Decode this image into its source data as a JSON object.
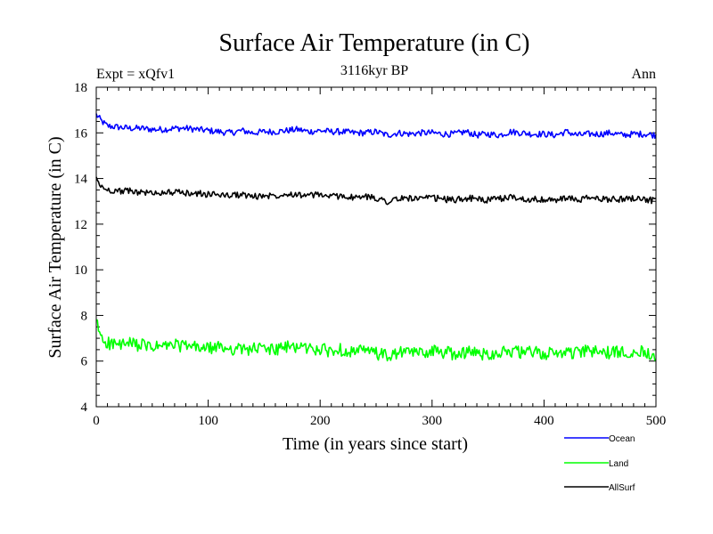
{
  "chart_data": {
    "type": "line",
    "title": "Surface Air Temperature (in C)",
    "subtitle": "3116kyr BP",
    "annotation_left": "Expt = xQfv1",
    "annotation_right": "Ann",
    "xlabel": "Time (in years since start)",
    "ylabel": "Surface Air Temperature (in C)",
    "xlim": [
      0,
      500
    ],
    "ylim": [
      4,
      18
    ],
    "xticks": [
      0,
      100,
      200,
      300,
      400,
      500
    ],
    "yticks": [
      4,
      6,
      8,
      10,
      12,
      14,
      16,
      18
    ],
    "xtick_labels": [
      "0",
      "100",
      "200",
      "300",
      "400",
      "500"
    ],
    "ytick_labels": [
      "4",
      "6",
      "8",
      "10",
      "12",
      "14",
      "16",
      "18"
    ],
    "legend_position": "bottom-right, outside",
    "series": [
      {
        "name": "Ocean",
        "color": "#0000ff",
        "x": [
          0,
          5,
          10,
          20,
          30,
          40,
          50,
          60,
          70,
          80,
          90,
          100,
          110,
          120,
          130,
          140,
          150,
          160,
          170,
          180,
          190,
          200,
          210,
          220,
          230,
          240,
          250,
          260,
          270,
          280,
          290,
          300,
          310,
          320,
          330,
          340,
          350,
          360,
          370,
          380,
          390,
          400,
          410,
          420,
          430,
          440,
          450,
          460,
          470,
          480,
          490,
          500
        ],
        "values": [
          16.8,
          16.5,
          16.3,
          16.25,
          16.2,
          16.2,
          16.15,
          16.15,
          16.2,
          16.2,
          16.15,
          16.1,
          16.05,
          16.0,
          16.1,
          16.0,
          16.05,
          16.05,
          16.1,
          16.15,
          16.05,
          16.1,
          16.05,
          16.05,
          16.0,
          16.0,
          16.05,
          15.9,
          16.0,
          15.95,
          16.0,
          16.0,
          15.95,
          15.95,
          16.05,
          15.9,
          15.95,
          15.9,
          16.05,
          16.0,
          15.95,
          15.95,
          15.9,
          16.05,
          15.9,
          15.95,
          15.95,
          16.0,
          15.9,
          15.95,
          15.95,
          15.9
        ]
      },
      {
        "name": "Land",
        "color": "#00ff00",
        "x": [
          0,
          5,
          10,
          20,
          30,
          40,
          50,
          60,
          70,
          80,
          90,
          100,
          110,
          120,
          130,
          140,
          150,
          160,
          170,
          180,
          190,
          200,
          210,
          220,
          230,
          240,
          250,
          260,
          270,
          280,
          290,
          300,
          310,
          320,
          330,
          340,
          350,
          360,
          370,
          380,
          390,
          400,
          410,
          420,
          430,
          440,
          450,
          460,
          470,
          480,
          490,
          500
        ],
        "values": [
          7.7,
          7.0,
          6.8,
          6.7,
          6.75,
          6.7,
          6.6,
          6.65,
          6.7,
          6.65,
          6.6,
          6.55,
          6.6,
          6.55,
          6.5,
          6.55,
          6.55,
          6.5,
          6.6,
          6.65,
          6.55,
          6.5,
          6.45,
          6.5,
          6.4,
          6.45,
          6.35,
          6.2,
          6.35,
          6.4,
          6.35,
          6.45,
          6.4,
          6.3,
          6.4,
          6.35,
          6.3,
          6.4,
          6.45,
          6.35,
          6.4,
          6.3,
          6.35,
          6.4,
          6.35,
          6.45,
          6.4,
          6.35,
          6.4,
          6.45,
          6.4,
          6.3
        ]
      },
      {
        "name": "AllSurf",
        "color": "#000000",
        "x": [
          0,
          5,
          10,
          20,
          30,
          40,
          50,
          60,
          70,
          80,
          90,
          100,
          110,
          120,
          130,
          140,
          150,
          160,
          170,
          180,
          190,
          200,
          210,
          220,
          230,
          240,
          250,
          260,
          270,
          280,
          290,
          300,
          310,
          320,
          330,
          340,
          350,
          360,
          370,
          380,
          390,
          400,
          410,
          420,
          430,
          440,
          450,
          460,
          470,
          480,
          490,
          500
        ],
        "values": [
          14.0,
          13.6,
          13.5,
          13.45,
          13.45,
          13.4,
          13.35,
          13.4,
          13.4,
          13.35,
          13.35,
          13.3,
          13.3,
          13.25,
          13.3,
          13.2,
          13.25,
          13.25,
          13.35,
          13.3,
          13.25,
          13.3,
          13.2,
          13.25,
          13.15,
          13.2,
          13.15,
          13.0,
          13.1,
          13.15,
          13.1,
          13.15,
          13.1,
          13.05,
          13.15,
          13.1,
          13.05,
          13.1,
          13.2,
          13.1,
          13.1,
          13.05,
          13.05,
          13.15,
          13.05,
          13.15,
          13.1,
          13.1,
          13.1,
          13.15,
          13.1,
          13.0
        ]
      }
    ]
  }
}
